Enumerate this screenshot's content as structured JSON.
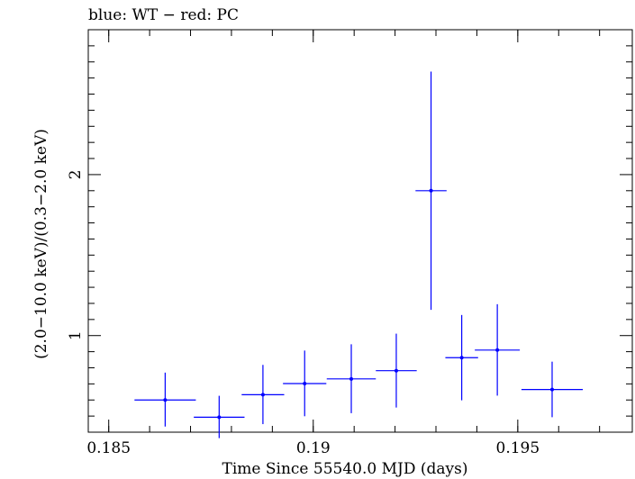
{
  "chart_data": {
    "type": "scatter",
    "title": "blue: WT − red: PC",
    "xlabel": "Time Since 55540.0 MJD (days)",
    "ylabel": "(2.0−10.0 keV)/(0.3−2.0 keV)",
    "xlim": [
      0.1845,
      0.1978
    ],
    "ylim": [
      0.4,
      2.9
    ],
    "x_ticks": [
      {
        "value": 0.185,
        "label": "0.185"
      },
      {
        "value": 0.19,
        "label": "0.19"
      },
      {
        "value": 0.195,
        "label": "0.195"
      }
    ],
    "y_ticks": [
      {
        "value": 1,
        "label": "1"
      },
      {
        "value": 2,
        "label": "2"
      }
    ],
    "y_minor_ticks": [
      0.5,
      0.6,
      0.7,
      0.8,
      0.9,
      1.1,
      1.2,
      1.3,
      1.4,
      1.5,
      1.6,
      1.7,
      1.8,
      1.9,
      2.1,
      2.2,
      2.3,
      2.4,
      2.5,
      2.6,
      2.7,
      2.8
    ],
    "x_minor_step": 0.001,
    "series": [
      {
        "color": "#0000ff",
        "points": [
          {
            "x": 0.18638,
            "xerr": 0.00075,
            "y": 0.6,
            "yerr_lo": 0.165,
            "yerr_hi": 0.17
          },
          {
            "x": 0.1877,
            "xerr": 0.00062,
            "y": 0.493,
            "yerr_lo": 0.13,
            "yerr_hi": 0.133
          },
          {
            "x": 0.18877,
            "xerr": 0.00052,
            "y": 0.633,
            "yerr_lo": 0.183,
            "yerr_hi": 0.185
          },
          {
            "x": 0.18979,
            "xerr": 0.00053,
            "y": 0.702,
            "yerr_lo": 0.203,
            "yerr_hi": 0.205
          },
          {
            "x": 0.19093,
            "xerr": 0.0006,
            "y": 0.731,
            "yerr_lo": 0.213,
            "yerr_hi": 0.215
          },
          {
            "x": 0.19203,
            "xerr": 0.0005,
            "y": 0.782,
            "yerr_lo": 0.229,
            "yerr_hi": 0.23
          },
          {
            "x": 0.19288,
            "xerr": 0.00038,
            "y": 1.9,
            "yerr_lo": 0.74,
            "yerr_hi": 0.74
          },
          {
            "x": 0.19363,
            "xerr": 0.0004,
            "y": 0.863,
            "yerr_lo": 0.265,
            "yerr_hi": 0.265
          },
          {
            "x": 0.1945,
            "xerr": 0.00055,
            "y": 0.91,
            "yerr_lo": 0.283,
            "yerr_hi": 0.285
          },
          {
            "x": 0.19584,
            "xerr": 0.00075,
            "y": 0.665,
            "yerr_lo": 0.172,
            "yerr_hi": 0.173
          }
        ]
      }
    ]
  }
}
